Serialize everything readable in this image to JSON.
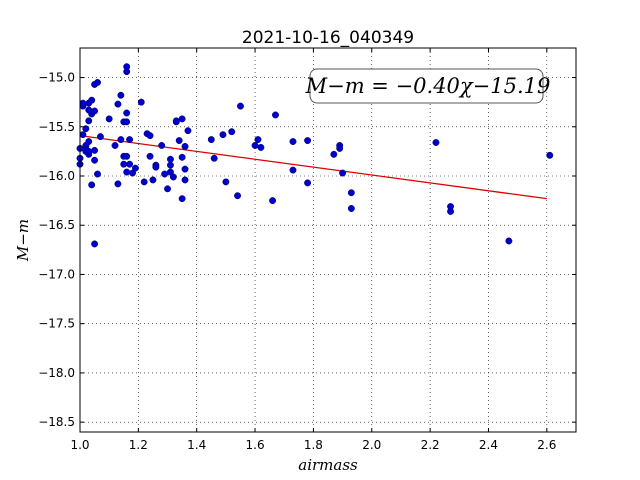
{
  "chart_data": {
    "type": "scatter",
    "title": "2021-10-16_040349",
    "xlabel": "airmass",
    "ylabel": "M−m",
    "xlim": [
      1.0,
      2.7
    ],
    "ylim": [
      -14.7,
      -18.6
    ],
    "y_inverted": true,
    "grid": true,
    "x_ticks": [
      "1.0",
      "1.2",
      "1.4",
      "1.6",
      "1.8",
      "2.0",
      "2.2",
      "2.4",
      "2.6"
    ],
    "y_ticks": [
      "−15.0",
      "−15.5",
      "−16.0",
      "−16.5",
      "−17.0",
      "−17.5",
      "−18.0",
      "−18.5"
    ],
    "annotation": "M−m = −0.40χ−15.19",
    "annotation_position": "top-right",
    "point_color": "#0000cc",
    "fit_color": "#dd0000",
    "fit_line": {
      "slope": -0.4,
      "intercept": -15.19,
      "x_range": [
        1.0,
        2.6
      ]
    },
    "points": [
      [
        1.0,
        -15.82
      ],
      [
        1.0,
        -15.88
      ],
      [
        1.0,
        -15.72
      ],
      [
        1.01,
        -15.58
      ],
      [
        1.01,
        -15.29
      ],
      [
        1.01,
        -15.26
      ],
      [
        1.02,
        -15.52
      ],
      [
        1.02,
        -15.75
      ],
      [
        1.02,
        -15.7
      ],
      [
        1.02,
        -15.69
      ],
      [
        1.03,
        -15.26
      ],
      [
        1.03,
        -15.33
      ],
      [
        1.03,
        -15.44
      ],
      [
        1.03,
        -15.65
      ],
      [
        1.03,
        -15.78
      ],
      [
        1.03,
        -15.75
      ],
      [
        1.04,
        -15.23
      ],
      [
        1.04,
        -15.37
      ],
      [
        1.04,
        -16.09
      ],
      [
        1.05,
        -15.07
      ],
      [
        1.05,
        -15.34
      ],
      [
        1.05,
        -15.84
      ],
      [
        1.05,
        -15.74
      ],
      [
        1.05,
        -16.69
      ],
      [
        1.06,
        -15.05
      ],
      [
        1.06,
        -15.98
      ],
      [
        1.07,
        -15.6
      ],
      [
        1.1,
        -15.42
      ],
      [
        1.12,
        -15.69
      ],
      [
        1.13,
        -15.27
      ],
      [
        1.13,
        -16.08
      ],
      [
        1.14,
        -15.18
      ],
      [
        1.14,
        -15.63
      ],
      [
        1.15,
        -15.45
      ],
      [
        1.15,
        -15.8
      ],
      [
        1.15,
        -15.88
      ],
      [
        1.16,
        -15.96
      ],
      [
        1.16,
        -14.89
      ],
      [
        1.16,
        -14.94
      ],
      [
        1.16,
        -15.36
      ],
      [
        1.16,
        -15.45
      ],
      [
        1.16,
        -15.8
      ],
      [
        1.17,
        -15.63
      ],
      [
        1.17,
        -15.88
      ],
      [
        1.18,
        -15.97
      ],
      [
        1.19,
        -15.92
      ],
      [
        1.21,
        -15.25
      ],
      [
        1.22,
        -16.06
      ],
      [
        1.23,
        -15.57
      ],
      [
        1.24,
        -15.8
      ],
      [
        1.24,
        -15.59
      ],
      [
        1.25,
        -16.04
      ],
      [
        1.26,
        -15.89
      ],
      [
        1.26,
        -15.91
      ],
      [
        1.28,
        -15.69
      ],
      [
        1.29,
        -15.98
      ],
      [
        1.3,
        -16.13
      ],
      [
        1.31,
        -15.83
      ],
      [
        1.31,
        -15.89
      ],
      [
        1.31,
        -15.96
      ],
      [
        1.32,
        -16.01
      ],
      [
        1.33,
        -15.45
      ],
      [
        1.33,
        -15.44
      ],
      [
        1.34,
        -15.64
      ],
      [
        1.35,
        -16.23
      ],
      [
        1.35,
        -15.42
      ],
      [
        1.35,
        -15.81
      ],
      [
        1.36,
        -15.93
      ],
      [
        1.36,
        -16.04
      ],
      [
        1.36,
        -15.7
      ],
      [
        1.37,
        -15.54
      ],
      [
        1.45,
        -15.63
      ],
      [
        1.46,
        -15.82
      ],
      [
        1.49,
        -15.58
      ],
      [
        1.5,
        -16.06
      ],
      [
        1.52,
        -15.55
      ],
      [
        1.54,
        -16.2
      ],
      [
        1.55,
        -15.29
      ],
      [
        1.6,
        -15.69
      ],
      [
        1.61,
        -15.63
      ],
      [
        1.62,
        -15.71
      ],
      [
        1.66,
        -16.25
      ],
      [
        1.67,
        -15.38
      ],
      [
        1.73,
        -15.94
      ],
      [
        1.73,
        -15.65
      ],
      [
        1.78,
        -16.07
      ],
      [
        1.78,
        -15.64
      ],
      [
        1.87,
        -15.78
      ],
      [
        1.89,
        -15.69
      ],
      [
        1.89,
        -15.72
      ],
      [
        1.9,
        -15.97
      ],
      [
        1.93,
        -16.33
      ],
      [
        1.93,
        -16.17
      ],
      [
        2.22,
        -15.66
      ],
      [
        2.27,
        -16.31
      ],
      [
        2.27,
        -16.36
      ],
      [
        2.47,
        -16.66
      ],
      [
        2.61,
        -15.79
      ]
    ]
  }
}
